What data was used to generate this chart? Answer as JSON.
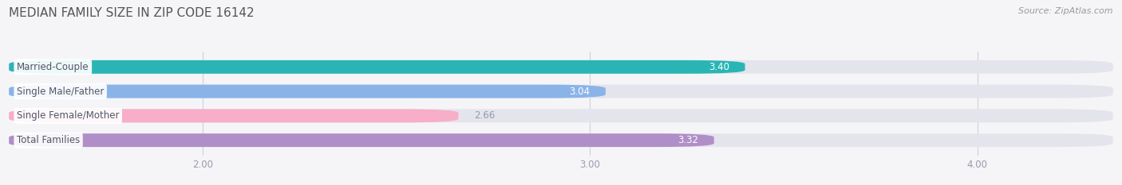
{
  "title": "MEDIAN FAMILY SIZE IN ZIP CODE 16142",
  "source": "Source: ZipAtlas.com",
  "categories": [
    "Married-Couple",
    "Single Male/Father",
    "Single Female/Mother",
    "Total Families"
  ],
  "values": [
    3.4,
    3.04,
    2.66,
    3.32
  ],
  "bar_colors": [
    "#2ab5b5",
    "#8ab4e8",
    "#f8adc8",
    "#b08ec8"
  ],
  "bar_bg_color": "#e4e4ec",
  "xlim": [
    1.5,
    4.35
  ],
  "xstart": 1.5,
  "xticks": [
    2.0,
    3.0,
    4.0
  ],
  "xtick_labels": [
    "2.00",
    "3.00",
    "4.00"
  ],
  "label_color": "#555566",
  "value_inside_color": "#ffffff",
  "value_outside_color": "#999aaa",
  "title_color": "#555555",
  "source_color": "#999999",
  "title_fontsize": 11,
  "label_fontsize": 8.5,
  "value_fontsize": 8.5,
  "bar_height": 0.55,
  "bar_gap": 0.18,
  "background_color": "#f5f5f8"
}
